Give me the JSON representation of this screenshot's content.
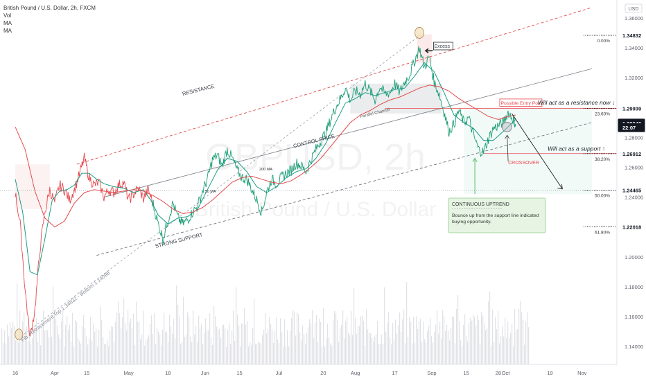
{
  "chart_data": {
    "type": "line",
    "symbol_line": "British Pound / U.S. Dollar, 2h, FXCM",
    "indicators": [
      "Vol",
      "MA",
      "MA"
    ],
    "currency": "USD",
    "watermark": {
      "symbol": "GBPUSD, 2h",
      "name": "British Pound / U.S. Dollar"
    },
    "ylim": [
      1.128,
      1.372
    ],
    "y_ticks": [
      "1.36000",
      "1.34000",
      "1.32000",
      "1.30000",
      "1.28000",
      "1.26000",
      "1.24000",
      "1.22000",
      "1.20000",
      "1.18000",
      "1.16000",
      "1.14000"
    ],
    "x_ticks": [
      {
        "label": "16",
        "pos": 0.0
      },
      {
        "label": "Apr",
        "pos": 16.0
      },
      {
        "label": "15",
        "pos": 29.0
      },
      {
        "label": "May",
        "pos": 46.0
      },
      {
        "label": "18",
        "pos": 62.0
      },
      {
        "label": "Jun",
        "pos": 77.0
      },
      {
        "label": "15",
        "pos": 91.0
      },
      {
        "label": "Jul",
        "pos": 107.0
      },
      {
        "label": "20",
        "pos": 125.0
      },
      {
        "label": "Aug",
        "pos": 138.0
      },
      {
        "label": "17",
        "pos": 154.0
      },
      {
        "label": "Sep",
        "pos": 169.0
      },
      {
        "label": "15",
        "pos": 183.0
      },
      {
        "label": "28",
        "pos": 196.0
      },
      {
        "label": "Oct",
        "pos": 199.0
      },
      {
        "label": "19",
        "pos": 217.0
      },
      {
        "label": "Nov",
        "pos": 230.0
      }
    ],
    "x_max": 234,
    "price_series": [
      [
        0,
        1.243
      ],
      [
        2,
        1.222
      ],
      [
        4,
        1.178
      ],
      [
        6,
        1.146
      ],
      [
        8,
        1.165
      ],
      [
        10,
        1.205
      ],
      [
        12,
        1.23
      ],
      [
        14,
        1.245
      ],
      [
        16,
        1.236
      ],
      [
        18,
        1.248
      ],
      [
        20,
        1.245
      ],
      [
        22,
        1.238
      ],
      [
        24,
        1.245
      ],
      [
        26,
        1.255
      ],
      [
        28,
        1.266
      ],
      [
        30,
        1.253
      ],
      [
        32,
        1.248
      ],
      [
        34,
        1.25
      ],
      [
        36,
        1.24
      ],
      [
        38,
        1.245
      ],
      [
        40,
        1.243
      ],
      [
        42,
        1.248
      ],
      [
        44,
        1.25
      ],
      [
        46,
        1.238
      ],
      [
        48,
        1.242
      ],
      [
        50,
        1.246
      ],
      [
        52,
        1.239
      ],
      [
        54,
        1.245
      ],
      [
        56,
        1.235
      ],
      [
        58,
        1.222
      ],
      [
        60,
        1.212
      ],
      [
        62,
        1.225
      ],
      [
        64,
        1.236
      ],
      [
        66,
        1.226
      ],
      [
        68,
        1.222
      ],
      [
        70,
        1.225
      ],
      [
        72,
        1.23
      ],
      [
        74,
        1.234
      ],
      [
        76,
        1.244
      ],
      [
        78,
        1.252
      ],
      [
        80,
        1.265
      ],
      [
        82,
        1.268
      ],
      [
        84,
        1.261
      ],
      [
        86,
        1.272
      ],
      [
        88,
        1.266
      ],
      [
        90,
        1.258
      ],
      [
        92,
        1.253
      ],
      [
        94,
        1.252
      ],
      [
        96,
        1.245
      ],
      [
        98,
        1.238
      ],
      [
        100,
        1.23
      ],
      [
        102,
        1.243
      ],
      [
        104,
        1.252
      ],
      [
        106,
        1.249
      ],
      [
        108,
        1.253
      ],
      [
        110,
        1.256
      ],
      [
        112,
        1.258
      ],
      [
        114,
        1.263
      ],
      [
        116,
        1.261
      ],
      [
        118,
        1.257
      ],
      [
        120,
        1.265
      ],
      [
        122,
        1.272
      ],
      [
        124,
        1.278
      ],
      [
        126,
        1.283
      ],
      [
        128,
        1.292
      ],
      [
        130,
        1.3
      ],
      [
        132,
        1.306
      ],
      [
        134,
        1.313
      ],
      [
        136,
        1.305
      ],
      [
        138,
        1.311
      ],
      [
        140,
        1.309
      ],
      [
        142,
        1.316
      ],
      [
        144,
        1.311
      ],
      [
        146,
        1.305
      ],
      [
        148,
        1.314
      ],
      [
        150,
        1.309
      ],
      [
        152,
        1.31
      ],
      [
        154,
        1.316
      ],
      [
        156,
        1.31
      ],
      [
        158,
        1.317
      ],
      [
        160,
        1.322
      ],
      [
        162,
        1.331
      ],
      [
        164,
        1.34
      ],
      [
        166,
        1.327
      ],
      [
        168,
        1.334
      ],
      [
        170,
        1.317
      ],
      [
        172,
        1.309
      ],
      [
        174,
        1.297
      ],
      [
        176,
        1.284
      ],
      [
        178,
        1.289
      ],
      [
        180,
        1.298
      ],
      [
        182,
        1.29
      ],
      [
        184,
        1.293
      ],
      [
        186,
        1.281
      ],
      [
        188,
        1.272
      ],
      [
        190,
        1.27
      ],
      [
        192,
        1.279
      ],
      [
        194,
        1.286
      ],
      [
        196,
        1.288
      ],
      [
        198,
        1.29
      ],
      [
        200,
        1.297
      ],
      [
        202,
        1.292
      ],
      [
        203,
        1.289
      ]
    ],
    "ma_fast": [
      [
        0,
        1.252
      ],
      [
        3,
        1.23
      ],
      [
        6,
        1.19
      ],
      [
        9,
        1.188
      ],
      [
        12,
        1.212
      ],
      [
        15,
        1.238
      ],
      [
        18,
        1.244
      ],
      [
        21,
        1.245
      ],
      [
        24,
        1.248
      ],
      [
        27,
        1.256
      ],
      [
        30,
        1.256
      ],
      [
        33,
        1.252
      ],
      [
        36,
        1.249
      ],
      [
        40,
        1.247
      ],
      [
        44,
        1.246
      ],
      [
        48,
        1.243
      ],
      [
        52,
        1.245
      ],
      [
        55,
        1.238
      ],
      [
        58,
        1.228
      ],
      [
        62,
        1.222
      ],
      [
        66,
        1.226
      ],
      [
        70,
        1.227
      ],
      [
        74,
        1.232
      ],
      [
        78,
        1.245
      ],
      [
        82,
        1.258
      ],
      [
        86,
        1.266
      ],
      [
        90,
        1.264
      ],
      [
        94,
        1.257
      ],
      [
        98,
        1.247
      ],
      [
        102,
        1.243
      ],
      [
        106,
        1.247
      ],
      [
        110,
        1.253
      ],
      [
        114,
        1.257
      ],
      [
        118,
        1.259
      ],
      [
        122,
        1.266
      ],
      [
        126,
        1.276
      ],
      [
        130,
        1.29
      ],
      [
        134,
        1.303
      ],
      [
        138,
        1.306
      ],
      [
        142,
        1.31
      ],
      [
        146,
        1.308
      ],
      [
        150,
        1.31
      ],
      [
        154,
        1.312
      ],
      [
        158,
        1.313
      ],
      [
        162,
        1.321
      ],
      [
        166,
        1.33
      ],
      [
        170,
        1.324
      ],
      [
        174,
        1.31
      ],
      [
        178,
        1.295
      ],
      [
        182,
        1.29
      ],
      [
        186,
        1.286
      ],
      [
        190,
        1.278
      ],
      [
        194,
        1.278
      ],
      [
        198,
        1.284
      ],
      [
        203,
        1.292
      ]
    ],
    "ma_slow": [
      [
        0,
        1.287
      ],
      [
        4,
        1.272
      ],
      [
        8,
        1.244
      ],
      [
        12,
        1.226
      ],
      [
        16,
        1.22
      ],
      [
        20,
        1.224
      ],
      [
        24,
        1.236
      ],
      [
        28,
        1.243
      ],
      [
        32,
        1.245
      ],
      [
        36,
        1.244
      ],
      [
        40,
        1.243
      ],
      [
        44,
        1.244
      ],
      [
        48,
        1.245
      ],
      [
        52,
        1.244
      ],
      [
        56,
        1.241
      ],
      [
        60,
        1.237
      ],
      [
        64,
        1.232
      ],
      [
        68,
        1.229
      ],
      [
        72,
        1.23
      ],
      [
        76,
        1.233
      ],
      [
        80,
        1.238
      ],
      [
        84,
        1.244
      ],
      [
        88,
        1.25
      ],
      [
        92,
        1.253
      ],
      [
        96,
        1.254
      ],
      [
        100,
        1.252
      ],
      [
        104,
        1.25
      ],
      [
        108,
        1.249
      ],
      [
        112,
        1.251
      ],
      [
        116,
        1.255
      ],
      [
        120,
        1.26
      ],
      [
        124,
        1.266
      ],
      [
        128,
        1.274
      ],
      [
        132,
        1.282
      ],
      [
        136,
        1.29
      ],
      [
        140,
        1.295
      ],
      [
        144,
        1.298
      ],
      [
        148,
        1.302
      ],
      [
        152,
        1.305
      ],
      [
        156,
        1.307
      ],
      [
        160,
        1.31
      ],
      [
        164,
        1.313
      ],
      [
        168,
        1.315
      ],
      [
        172,
        1.314
      ],
      [
        176,
        1.311
      ],
      [
        180,
        1.306
      ],
      [
        184,
        1.302
      ],
      [
        188,
        1.298
      ],
      [
        192,
        1.294
      ],
      [
        196,
        1.292
      ],
      [
        200,
        1.294
      ],
      [
        203,
        1.295
      ]
    ],
    "price_labels": [
      {
        "value": 1.34832,
        "label": "1.34832",
        "style": "plain"
      },
      {
        "value": 1.29939,
        "label": "1.29939",
        "style": "plain"
      },
      {
        "value": 1.28949,
        "label": "1.28949",
        "style": "dark"
      },
      {
        "value": 1.2866,
        "label": "22:07",
        "style": "dark"
      },
      {
        "value": 1.26912,
        "label": "1.26912",
        "style": "plain"
      },
      {
        "value": 1.24465,
        "label": "1.24465",
        "style": "plain"
      },
      {
        "value": 1.22018,
        "label": "1.22018",
        "style": "plain"
      }
    ],
    "fib_levels": [
      {
        "value": 1.34832,
        "label": "0.00%"
      },
      {
        "value": 1.29939,
        "label": "23.60%"
      },
      {
        "value": 1.26912,
        "label": "38.20%"
      },
      {
        "value": 1.24465,
        "label": "50.00%"
      },
      {
        "value": 1.22018,
        "label": "61.80%"
      }
    ],
    "channel_lines": [
      {
        "name": "resistance",
        "from": [
          25,
          1.262
        ],
        "to": [
          234,
          1.367
        ]
      },
      {
        "name": "control",
        "from": [
          36,
          1.24
        ],
        "to": [
          234,
          1.326
        ]
      },
      {
        "name": "support",
        "from": [
          33,
          1.201
        ],
        "to": [
          234,
          1.29
        ]
      }
    ],
    "fib_diagonal": {
      "from": [
        1,
        1.145
      ],
      "to": [
        164,
        1.348
      ]
    },
    "annotations": [
      {
        "text": "RESISTANCE",
        "x": 68,
        "y": 1.308,
        "angle": -14
      },
      {
        "text": "CONTROL PRICE",
        "x": 113,
        "y": 1.273,
        "angle": -14
      },
      {
        "text": "STRONG SUPPORT",
        "x": 57,
        "y": 1.206,
        "angle": -14
      },
      {
        "text": "Parallel Channel",
        "x": 140,
        "y": 1.293,
        "angle": -14
      },
      {
        "text": "50 MA",
        "x": 77,
        "y": 1.243,
        "angle": 0
      },
      {
        "text": "200 MA",
        "x": 99,
        "y": 1.258,
        "angle": 0
      },
      {
        "text": "Fib. Retracement Top 1.34832 - Bottom 1.14098",
        "x": 3,
        "y": 1.143,
        "angle": -38
      },
      {
        "text": "Excess",
        "x": 170,
        "y": 1.34,
        "angle": 0
      },
      {
        "text": "Possible Entry Point",
        "x": 197,
        "y": 1.302,
        "angle": 0
      },
      {
        "text": "Will act as a resistance now ↓",
        "x": 212,
        "y": 1.302,
        "angle": 0
      },
      {
        "text": "Will act as a support ↑",
        "x": 216,
        "y": 1.271,
        "angle": 0
      },
      {
        "text": "CROSSOVER",
        "x": 200,
        "y": 1.262,
        "angle": 0
      }
    ],
    "info_box": {
      "title": "CONTINUOUS UPTREND",
      "line1": "Bounce up from the support line indicated",
      "line2": "buying opportunity."
    }
  }
}
